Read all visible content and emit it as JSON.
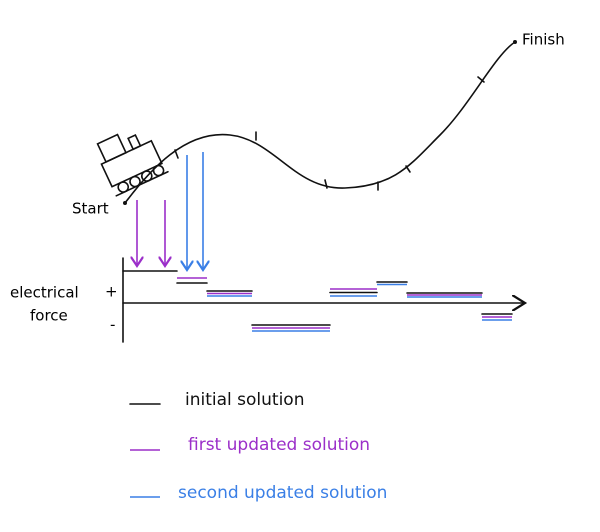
{
  "labels": {
    "start": "Start",
    "finish": "Finish",
    "axis_line1": "electrical",
    "plus": "+",
    "axis_line2": "force",
    "minus": "-"
  },
  "legend": [
    {
      "label": "initial solution"
    },
    {
      "label": "first updated solution"
    },
    {
      "label": "second updated solution"
    }
  ]
}
